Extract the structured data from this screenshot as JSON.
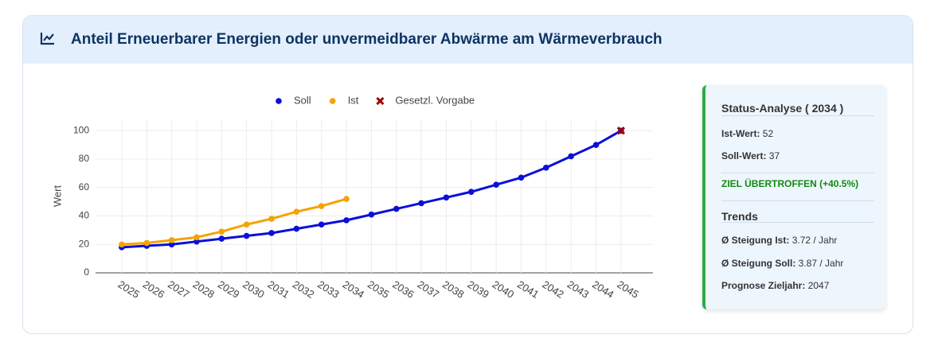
{
  "header": {
    "title": "Anteil Erneuerbarer Energien oder unvermeidbarer Abwärme am Wärmeverbrauch"
  },
  "chart_data": {
    "type": "line",
    "x": [
      2025,
      2026,
      2027,
      2028,
      2029,
      2030,
      2031,
      2032,
      2033,
      2034,
      2035,
      2036,
      2037,
      2038,
      2039,
      2040,
      2041,
      2042,
      2043,
      2044,
      2045
    ],
    "series": [
      {
        "name": "Soll",
        "color": "#0a10d8",
        "marker": "circle",
        "line": true,
        "values": [
          18,
          19,
          20,
          22,
          24,
          26,
          28,
          31,
          34,
          37,
          41,
          45,
          49,
          53,
          57,
          62,
          67,
          74,
          82,
          90,
          100
        ]
      },
      {
        "name": "Ist",
        "color": "#f5a300",
        "marker": "circle",
        "line": true,
        "values": [
          20,
          21,
          23,
          25,
          29,
          34,
          38,
          43,
          47,
          52,
          null,
          null,
          null,
          null,
          null,
          null,
          null,
          null,
          null,
          null,
          null
        ]
      },
      {
        "name": "Gesetzl. Vorgabe",
        "color": "#a00000",
        "marker": "x",
        "line": false,
        "values": [
          null,
          null,
          null,
          null,
          null,
          null,
          null,
          null,
          null,
          null,
          null,
          null,
          null,
          null,
          null,
          null,
          null,
          null,
          null,
          null,
          100
        ]
      }
    ],
    "y_label": "Wert",
    "xlim": [
      2023.95,
      2046.28
    ],
    "xticks": [
      2025,
      2026,
      2027,
      2028,
      2029,
      2030,
      2031,
      2032,
      2033,
      2034,
      2035,
      2036,
      2037,
      2038,
      2039,
      2040,
      2041,
      2042,
      2043,
      2044,
      2045
    ],
    "ylim": [
      0,
      108
    ],
    "yticks": [
      0,
      20,
      40,
      60,
      80,
      100
    ],
    "grid": true,
    "legend": "top"
  },
  "status": {
    "title": "Status-Analyse ( 2034 )",
    "rows": [
      {
        "label": "Ist-Wert:",
        "value": "52"
      },
      {
        "label": "Soll-Wert:",
        "value": "37"
      }
    ],
    "result": "ZIEL ÜBERTROFFEN (+40.5%)",
    "trends_title": "Trends",
    "trends": [
      {
        "label": "Ø Steigung Ist:",
        "value": "3.72 / Jahr"
      },
      {
        "label": "Ø Steigung Soll:",
        "value": "3.87 / Jahr"
      },
      {
        "label": "Prognose Zieljahr:",
        "value": "2047"
      }
    ]
  }
}
